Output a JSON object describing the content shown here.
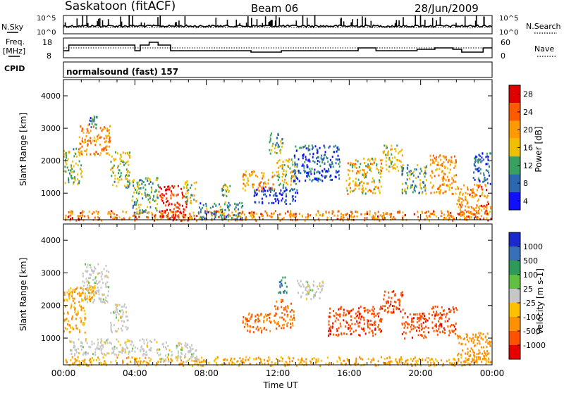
{
  "header": {
    "station": "Saskatoon (fitACF)",
    "beam": "Beam 06",
    "date": "28/Jun/2009"
  },
  "labels": {
    "nsky": "N.Sky",
    "nsearch": "N.Search",
    "freq_line1": "Freq.",
    "freq_line2": "[MHz]",
    "nave": "Nave",
    "cpid": "CPID",
    "cpid_value": "normalsound (fast) 157",
    "log_hi": "10^5",
    "log_lo": "10^0"
  },
  "chart_data": [
    {
      "type": "line",
      "name": "noise",
      "series": [
        {
          "name": "N.Sky",
          "style": "solid"
        },
        {
          "name": "N.Search",
          "style": "dotted"
        }
      ],
      "ylim_labels": [
        "10^0",
        "10^5"
      ]
    },
    {
      "type": "line",
      "name": "frequency",
      "xlim": [
        0,
        24
      ],
      "series": [
        {
          "name": "Freq. [MHz]",
          "style": "solid",
          "x": [
            0,
            0.3,
            0.3,
            4.0,
            4.0,
            4.3,
            4.3,
            4.8,
            4.8,
            5.3,
            5.3,
            6.0,
            6.0,
            10.5,
            10.5,
            12.2,
            12.2,
            16.5,
            16.5,
            17.5,
            17.5,
            19.8,
            19.8,
            20.8,
            20.8,
            21.8,
            21.8,
            22.3,
            22.3,
            23.5,
            23.5,
            24
          ],
          "y": [
            11,
            11,
            15,
            15,
            11,
            11,
            15,
            15,
            17,
            17,
            15,
            15,
            11,
            11,
            10,
            10,
            11,
            11,
            13,
            13,
            11,
            11,
            12,
            12,
            13,
            13,
            12,
            12,
            10,
            10,
            13,
            13
          ]
        }
      ],
      "yticks_left": [
        "18",
        "8"
      ],
      "yticks_right": [
        "60",
        "0"
      ]
    },
    {
      "type": "heatmap",
      "name": "power",
      "xlim": [
        0,
        24
      ],
      "ylim": [
        180,
        4500
      ],
      "xlabel": "",
      "ylabel": "Slant Range [km]",
      "xticks": [
        "00:00",
        "04:00",
        "08:00",
        "12:00",
        "16:00",
        "20:00",
        "00:00"
      ],
      "yticks": [
        1000,
        2000,
        3000,
        4000
      ],
      "colorbar": {
        "label": "Power [dB]",
        "ticks": [
          "28",
          "24",
          "20",
          "16",
          "12",
          "8",
          "4"
        ],
        "colors": [
          "#e00000",
          "#ff5a00",
          "#ff9a00",
          "#f0c000",
          "#38a060",
          "#2c68b0",
          "#1010ff"
        ]
      },
      "regions": [
        {
          "t0": 0.05,
          "t1": 24.0,
          "r0": 180,
          "r1": 480,
          "value": 22
        },
        {
          "t0": 0.0,
          "t1": 1.0,
          "r0": 1300,
          "r1": 2400,
          "value": 14
        },
        {
          "t0": 0.8,
          "t1": 2.6,
          "r0": 2200,
          "r1": 3100,
          "value": 20
        },
        {
          "t0": 1.3,
          "t1": 1.9,
          "r0": 3000,
          "r1": 3400,
          "value": 10
        },
        {
          "t0": 2.6,
          "t1": 3.7,
          "r0": 1200,
          "r1": 2300,
          "value": 14
        },
        {
          "t0": 3.8,
          "t1": 5.3,
          "r0": 400,
          "r1": 1500,
          "value": 12
        },
        {
          "t0": 5.3,
          "t1": 6.9,
          "r0": 250,
          "r1": 1300,
          "value": 28
        },
        {
          "t0": 6.7,
          "t1": 7.4,
          "r0": 700,
          "r1": 1400,
          "value": 14
        },
        {
          "t0": 7.5,
          "t1": 10.0,
          "r0": 200,
          "r1": 750,
          "value": 10
        },
        {
          "t0": 8.8,
          "t1": 9.3,
          "r0": 900,
          "r1": 1300,
          "value": 14
        },
        {
          "t0": 10.0,
          "t1": 11.8,
          "r0": 1100,
          "r1": 1700,
          "value": 20
        },
        {
          "t0": 10.6,
          "t1": 13.1,
          "r0": 700,
          "r1": 1200,
          "value": 6
        },
        {
          "t0": 11.9,
          "t1": 13.0,
          "r0": 1200,
          "r1": 2100,
          "value": 16
        },
        {
          "t0": 11.5,
          "t1": 12.3,
          "r0": 2250,
          "r1": 2900,
          "value": 12
        },
        {
          "t0": 12.8,
          "t1": 15.5,
          "r0": 1400,
          "r1": 2500,
          "value": 8
        },
        {
          "t0": 15.8,
          "t1": 17.8,
          "r0": 1000,
          "r1": 2100,
          "value": 18
        },
        {
          "t0": 17.8,
          "t1": 19.0,
          "r0": 1700,
          "r1": 2500,
          "value": 16
        },
        {
          "t0": 18.9,
          "t1": 20.3,
          "r0": 1000,
          "r1": 1900,
          "value": 12
        },
        {
          "t0": 20.5,
          "t1": 22.0,
          "r0": 1000,
          "r1": 2200,
          "value": 20
        },
        {
          "t0": 22.0,
          "t1": 23.9,
          "r0": 300,
          "r1": 1300,
          "value": 22
        },
        {
          "t0": 22.9,
          "t1": 23.9,
          "r0": 1300,
          "r1": 2300,
          "value": 8
        }
      ]
    },
    {
      "type": "heatmap",
      "name": "velocity",
      "xlim": [
        0,
        24
      ],
      "ylim": [
        180,
        4500
      ],
      "xlabel": "Time UT",
      "ylabel": "Slant Range [km]",
      "xticks": [
        "00:00",
        "04:00",
        "08:00",
        "12:00",
        "16:00",
        "20:00",
        "00:00"
      ],
      "yticks": [
        1000,
        2000,
        3000,
        4000
      ],
      "colorbar": {
        "label": "Velocity [m s-1]",
        "ticks": [
          "1000",
          "500",
          "100",
          "25",
          "-25",
          "-100",
          "-500",
          "-1000"
        ],
        "colors": [
          "#1a2acc",
          "#3870b8",
          "#2e9a58",
          "#62c040",
          "#c6c6c6",
          "#ffc000",
          "#ff9000",
          "#ff5200",
          "#e80000"
        ]
      },
      "regions": [
        {
          "t0": 0.05,
          "t1": 24.0,
          "r0": 180,
          "r1": 450,
          "value": -100
        },
        {
          "t0": 0.0,
          "t1": 1.2,
          "r0": 1200,
          "r1": 2600,
          "value": -100
        },
        {
          "t0": 1.0,
          "t1": 2.5,
          "r0": 2100,
          "r1": 3300,
          "value": 0
        },
        {
          "t0": 1.0,
          "t1": 1.8,
          "r0": 2200,
          "r1": 2600,
          "value": -120
        },
        {
          "t0": 0.3,
          "t1": 5.3,
          "r0": 500,
          "r1": 1000,
          "value": 0
        },
        {
          "t0": 2.6,
          "t1": 3.6,
          "r0": 1200,
          "r1": 2100,
          "value": 0
        },
        {
          "t0": 5.3,
          "t1": 7.5,
          "r0": 300,
          "r1": 900,
          "value": 0
        },
        {
          "t0": 10.0,
          "t1": 11.8,
          "r0": 1200,
          "r1": 1800,
          "value": -300
        },
        {
          "t0": 11.8,
          "t1": 12.9,
          "r0": 1300,
          "r1": 2200,
          "value": -300
        },
        {
          "t0": 12.0,
          "t1": 12.5,
          "r0": 2400,
          "r1": 2900,
          "value": 300
        },
        {
          "t0": 14.8,
          "t1": 17.8,
          "r0": 1100,
          "r1": 2000,
          "value": -600
        },
        {
          "t0": 17.8,
          "t1": 19.0,
          "r0": 1800,
          "r1": 2500,
          "value": -600
        },
        {
          "t0": 18.9,
          "t1": 20.5,
          "r0": 1000,
          "r1": 1800,
          "value": -600
        },
        {
          "t0": 20.6,
          "t1": 22.0,
          "r0": 1100,
          "r1": 2000,
          "value": -600
        },
        {
          "t0": 22.0,
          "t1": 23.9,
          "r0": 300,
          "r1": 1200,
          "value": -200
        },
        {
          "t0": 13.0,
          "t1": 14.5,
          "r0": 2200,
          "r1": 2800,
          "value": 0
        }
      ]
    }
  ]
}
